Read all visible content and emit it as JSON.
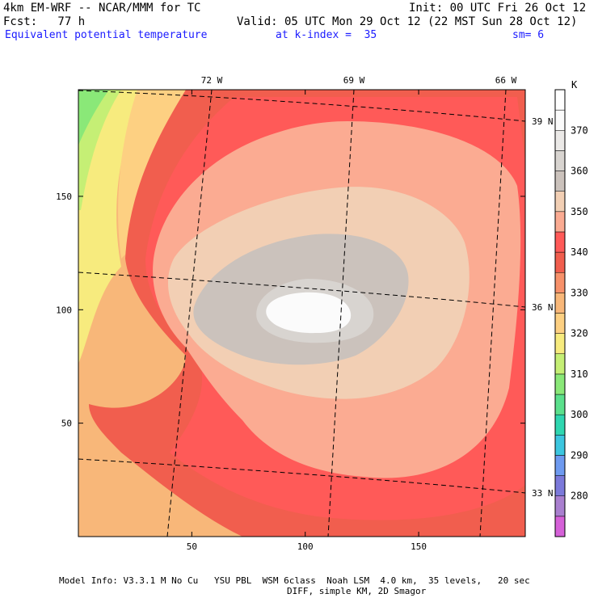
{
  "header": {
    "model": "4km EM-WRF -- NCAR/MMM for TC",
    "init": "Init: 00 UTC Fri 26 Oct 12",
    "fcst": "Fcst:   77 h",
    "valid": "Valid: 05 UTC Mon 29 Oct 12 (22 MST Sun 28 Oct 12)",
    "field": "Equivalent potential temperature",
    "kindex": "at k-index =  35",
    "sm": "sm= 6"
  },
  "chart_data": {
    "type": "heatmap",
    "title": "Equivalent potential temperature",
    "unit": "K",
    "x_ticks": [
      50,
      100,
      150
    ],
    "y_ticks": [
      50,
      100,
      150
    ],
    "xlim": [
      0,
      197
    ],
    "ylim": [
      0,
      197
    ],
    "lon_labels": [
      "72 W",
      "69 W",
      "66 W"
    ],
    "lat_labels": [
      "39 N",
      "36 N",
      "33 N"
    ],
    "colorbar": {
      "levels": [
        270,
        275,
        280,
        285,
        290,
        295,
        300,
        305,
        310,
        315,
        320,
        325,
        330,
        335,
        340,
        345,
        350,
        355,
        360,
        365,
        370,
        375,
        380
      ],
      "labels": [
        "280",
        "290",
        "300",
        "310",
        "320",
        "330",
        "340",
        "350",
        "360",
        "370"
      ],
      "colors": [
        "#d561d8",
        "#a97fcf",
        "#7b79da",
        "#6e9af0",
        "#3cc6df",
        "#2fd6b0",
        "#5be08c",
        "#8ae878",
        "#c5ef75",
        "#f7eb7e",
        "#fdd082",
        "#f8b779",
        "#f7916a",
        "#f15e4e",
        "#ff5a58",
        "#fbab92",
        "#f2cfb4",
        "#cbc2bc",
        "#d8d4d0",
        "#ebe9e7",
        "#fbfbfb",
        "#ffffff"
      ]
    },
    "field_levels": {
      "outer": 335,
      "wrap": 340,
      "ring": 345,
      "mid": 350,
      "inner": 355,
      "core": 360,
      "eye": 370,
      "west_band": 330,
      "west_edge": 320,
      "nw_corner": 310
    }
  },
  "footer": {
    "line1": "Model Info: V3.3.1 M No Cu   YSU PBL  WSM 6class  Noah LSM  4.0 km,  35 levels,   20 sec",
    "line2": "DIFF, simple KM, 2D Smagor"
  }
}
